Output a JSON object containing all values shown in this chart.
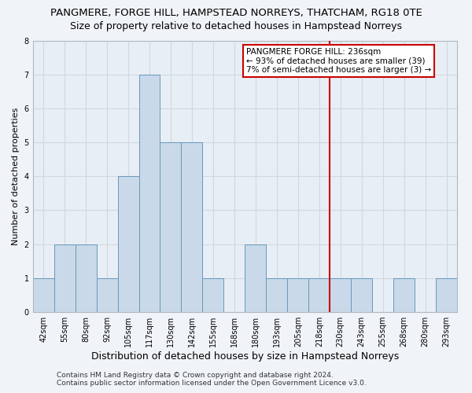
{
  "title": "PANGMERE, FORGE HILL, HAMPSTEAD NORREYS, THATCHAM, RG18 0TE",
  "subtitle": "Size of property relative to detached houses in Hampstead Norreys",
  "xlabel": "Distribution of detached houses by size in Hampstead Norreys",
  "ylabel": "Number of detached properties",
  "bar_labels": [
    "42sqm",
    "55sqm",
    "80sqm",
    "92sqm",
    "105sqm",
    "117sqm",
    "130sqm",
    "142sqm",
    "155sqm",
    "168sqm",
    "180sqm",
    "193sqm",
    "205sqm",
    "218sqm",
    "230sqm",
    "243sqm",
    "255sqm",
    "268sqm",
    "280sqm",
    "293sqm"
  ],
  "bar_heights": [
    1,
    2,
    2,
    1,
    4,
    7,
    5,
    5,
    1,
    0,
    2,
    1,
    1,
    1,
    1,
    1,
    0,
    1,
    0,
    1
  ],
  "bar_color": "#c9d9ea",
  "bar_edge_color": "#6699bb",
  "plot_bg_color": "#e8eef5",
  "fig_bg_color": "#f0f4f8",
  "grid_color": "#d0d8e0",
  "ylim": [
    0,
    8
  ],
  "yticks": [
    0,
    1,
    2,
    3,
    4,
    5,
    6,
    7,
    8
  ],
  "red_line_index": 14,
  "annotation_title": "PANGMERE FORGE HILL: 236sqm",
  "annotation_line1": "← 93% of detached houses are smaller (39)",
  "annotation_line2": "7% of semi-detached houses are larger (3) →",
  "footer_line1": "Contains HM Land Registry data © Crown copyright and database right 2024.",
  "footer_line2": "Contains public sector information licensed under the Open Government Licence v3.0.",
  "title_fontsize": 9.5,
  "subtitle_fontsize": 9,
  "xlabel_fontsize": 9,
  "ylabel_fontsize": 8,
  "tick_fontsize": 7,
  "annotation_fontsize": 7.5,
  "footer_fontsize": 6.5
}
